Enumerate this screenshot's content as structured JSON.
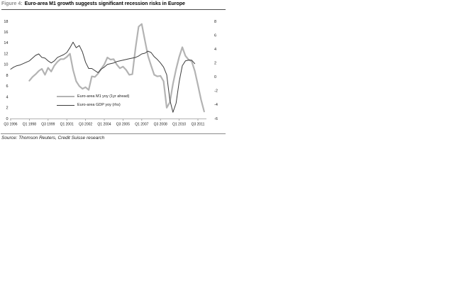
{
  "figure": {
    "label": "Figure 4:",
    "title": "Euro-area M1 growth suggests significant recession risks in Europe"
  },
  "source": "Source: Thomson Reuters, Credit Suisse research",
  "colors": {
    "m1_line": "#b3b3b3",
    "gdp_line": "#3d3d3d",
    "axis": "#999999",
    "figure_label": "#8c8c8c",
    "header_rule": "#4d4d4d",
    "source_rule": "#8c8c8c"
  },
  "chart_data": {
    "type": "line",
    "title": "",
    "grid": false,
    "legend_position": "inside-lower-left",
    "x_axis": {
      "tick_labels": [
        "Q3 1996",
        "Q1 1998",
        "Q3 1999",
        "Q1 2001",
        "Q3 2002",
        "Q1 2004",
        "Q3 2005",
        "Q1 2007",
        "Q3 2008",
        "Q1 2010",
        "Q3 2011"
      ],
      "quarters_per_tick": 6,
      "quarter_index_range": [
        0,
        63
      ]
    },
    "left_axis": {
      "min": 0,
      "max": 18,
      "tick_step": 2,
      "ticks": [
        0,
        2,
        4,
        6,
        8,
        10,
        12,
        14,
        16,
        18
      ]
    },
    "right_axis": {
      "min": -6,
      "max": 8,
      "tick_step": 2,
      "ticks": [
        -6,
        -4,
        -2,
        0,
        2,
        4,
        6,
        8
      ]
    },
    "series": [
      {
        "name": "Euro-area M1 yoy (1yr ahead)",
        "axis": "left",
        "color": "#b3b3b3",
        "stroke_width": 2.2,
        "start_quarter_index": 6,
        "values": [
          7.0,
          7.7,
          8.2,
          8.8,
          9.2,
          8.1,
          9.4,
          8.7,
          9.8,
          10.5,
          11.0,
          11.0,
          11.4,
          12.0,
          9.0,
          6.9,
          6.0,
          5.5,
          5.8,
          5.3,
          7.8,
          7.7,
          8.3,
          9.2,
          10.0,
          11.3,
          10.9,
          11.0,
          10.0,
          9.3,
          9.6,
          9.0,
          8.1,
          8.2,
          13.0,
          17.0,
          17.5,
          14.5,
          11.6,
          9.8,
          8.1,
          7.8,
          7.9,
          6.9,
          2.0,
          3.0,
          6.4,
          9.1,
          11.4,
          13.2,
          11.6,
          10.9,
          10.6,
          8.8,
          6.2,
          3.5,
          1.3
        ]
      },
      {
        "name": "Euro-area GDP yoy (rhs)",
        "axis": "right",
        "color": "#3d3d3d",
        "stroke_width": 1,
        "start_quarter_index": 0,
        "values": [
          1.1,
          1.4,
          1.6,
          1.7,
          1.9,
          2.1,
          2.3,
          2.7,
          3.1,
          3.3,
          2.8,
          2.7,
          2.3,
          2.0,
          2.3,
          2.8,
          3.0,
          3.2,
          3.5,
          4.2,
          5.0,
          4.2,
          4.5,
          3.6,
          2.1,
          1.2,
          1.2,
          0.9,
          0.6,
          1.1,
          1.4,
          1.8,
          1.9,
          2.0,
          2.2,
          2.3,
          2.4,
          2.5,
          2.6,
          2.7,
          2.8,
          3.0,
          3.3,
          3.4,
          3.7,
          3.5,
          2.9,
          2.5,
          2.0,
          1.4,
          0.3,
          -3.3,
          -5.1,
          -3.8,
          -0.7,
          1.6,
          2.3,
          2.4,
          2.4,
          1.9
        ]
      }
    ]
  }
}
